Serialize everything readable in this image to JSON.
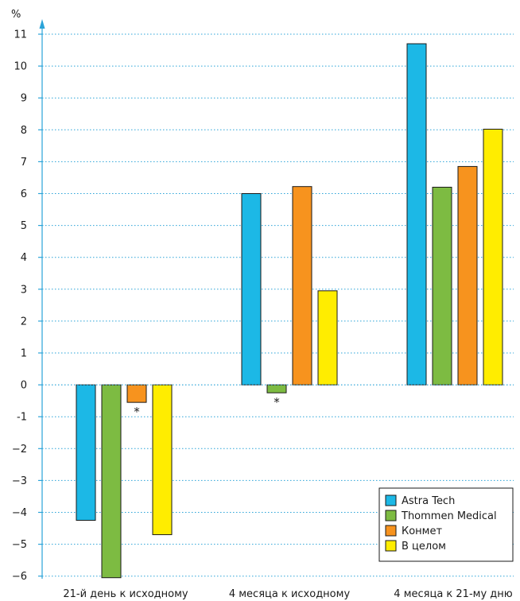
{
  "chart_data": {
    "type": "bar",
    "ylabel": "%",
    "ylim": [
      -6,
      11
    ],
    "yticks": [
      11,
      10,
      9,
      8,
      7,
      6,
      5,
      4,
      3,
      2,
      1,
      0,
      -1,
      -2,
      -3,
      -4,
      -5,
      -6
    ],
    "ytick_labels": [
      "11",
      "10",
      "9",
      "8",
      "7",
      "6",
      "5",
      "4",
      "3",
      "2",
      "1",
      "0",
      "-1",
      "−2",
      "−3",
      "−4",
      "−5",
      "−6"
    ],
    "grid": true,
    "categories": [
      "21-й день к исходному",
      "4 месяца к исходному",
      "4 месяца к 21-му дню"
    ],
    "series": [
      {
        "name": "Astra Tech",
        "color": "#1cb8e6",
        "values": [
          -4.25,
          6.0,
          10.7
        ]
      },
      {
        "name": "Thommen Medical",
        "color": "#7dbb42",
        "values": [
          -6.05,
          -0.25,
          6.2
        ]
      },
      {
        "name": "Конмет",
        "color": "#f7931e",
        "values": [
          -0.55,
          6.22,
          6.85
        ]
      },
      {
        "name": "В целом",
        "color": "#ffed00",
        "values": [
          -4.7,
          2.95,
          8.02
        ]
      }
    ],
    "annotations": [
      {
        "text": "*",
        "category": 0,
        "series": 2
      },
      {
        "text": "*",
        "category": 1,
        "series": 1
      }
    ],
    "legend_position": "bottom-right",
    "axis_color": "#2aa3d8",
    "grid_color": "#2aa3d8"
  }
}
